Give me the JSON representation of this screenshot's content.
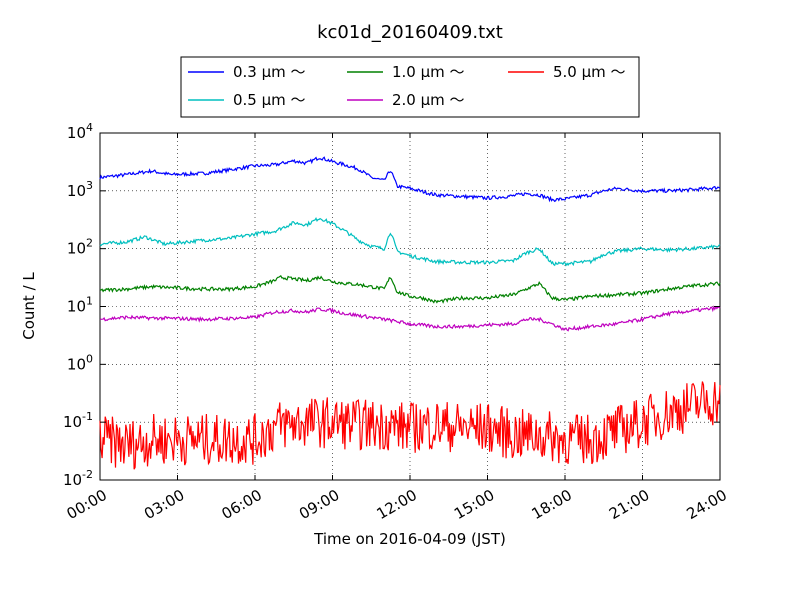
{
  "chart_data": {
    "type": "line",
    "title": "kc01d_20160409.txt",
    "xlabel": "Time on 2016-04-09 (JST)",
    "ylabel": "Count / L",
    "yscale": "log",
    "ylim": [
      0.01,
      10000
    ],
    "xlim": [
      "00:00",
      "24:00"
    ],
    "grid": true,
    "legend_position": "top-center",
    "x_ticks": [
      "00:00",
      "03:00",
      "06:00",
      "09:00",
      "12:00",
      "15:00",
      "18:00",
      "21:00",
      "24:00"
    ],
    "y_ticks": [
      {
        "base": "10",
        "exp": "-2"
      },
      {
        "base": "10",
        "exp": "-1"
      },
      {
        "base": "10",
        "exp": "0"
      },
      {
        "base": "10",
        "exp": "1"
      },
      {
        "base": "10",
        "exp": "2"
      },
      {
        "base": "10",
        "exp": "3"
      },
      {
        "base": "10",
        "exp": "4"
      }
    ],
    "series": [
      {
        "name": "0.3 μm ～",
        "color": "#0000ff",
        "x": [
          "00:00",
          "01:00",
          "02:00",
          "02:45",
          "04:00",
          "05:00",
          "06:00",
          "06:45",
          "07:30",
          "08:00",
          "08:30",
          "09:00",
          "09:30",
          "10:00",
          "10:30",
          "11:00",
          "11:15",
          "11:30",
          "12:00",
          "13:00",
          "14:00",
          "15:00",
          "16:00",
          "16:30",
          "17:00",
          "17:30",
          "18:00",
          "19:00",
          "19:30",
          "20:00",
          "21:00",
          "22:00",
          "23:00",
          "24:00"
        ],
        "y": [
          1700,
          1900,
          2200,
          1900,
          2000,
          2300,
          2700,
          2800,
          3300,
          3000,
          3800,
          3200,
          2800,
          2400,
          1700,
          1500,
          2300,
          1200,
          1100,
          850,
          800,
          750,
          820,
          900,
          850,
          700,
          720,
          850,
          1000,
          1100,
          1000,
          1000,
          1050,
          1150
        ]
      },
      {
        "name": "0.5 μm ～",
        "color": "#00bfbf",
        "x": [
          "00:00",
          "01:00",
          "01:45",
          "02:30",
          "04:00",
          "05:00",
          "06:00",
          "06:45",
          "07:30",
          "08:00",
          "08:30",
          "09:00",
          "09:30",
          "10:00",
          "10:30",
          "11:00",
          "11:15",
          "11:30",
          "12:00",
          "13:00",
          "14:00",
          "15:00",
          "16:00",
          "16:30",
          "17:00",
          "17:30",
          "18:00",
          "19:00",
          "19:30",
          "20:00",
          "21:00",
          "22:00",
          "23:00",
          "24:00"
        ],
        "y": [
          120,
          130,
          160,
          120,
          140,
          150,
          180,
          200,
          280,
          260,
          340,
          270,
          200,
          140,
          110,
          100,
          200,
          90,
          75,
          60,
          58,
          58,
          62,
          85,
          100,
          55,
          55,
          60,
          80,
          90,
          100,
          95,
          100,
          110
        ]
      },
      {
        "name": "1.0 μm ～",
        "color": "#008000",
        "x": [
          "00:00",
          "01:00",
          "02:00",
          "04:00",
          "05:00",
          "06:00",
          "06:45",
          "07:00",
          "07:30",
          "08:00",
          "08:30",
          "09:00",
          "09:30",
          "10:00",
          "10:30",
          "11:00",
          "11:15",
          "11:30",
          "12:00",
          "12:30",
          "13:00",
          "14:00",
          "15:00",
          "15:30",
          "16:00",
          "16:30",
          "17:00",
          "17:30",
          "18:00",
          "19:00",
          "20:00",
          "21:00",
          "22:00",
          "23:00",
          "24:00"
        ],
        "y": [
          19,
          20,
          22,
          20,
          20,
          22,
          28,
          32,
          30,
          28,
          32,
          27,
          25,
          24,
          22,
          20,
          33,
          18,
          15,
          14,
          12,
          14,
          14,
          15,
          16,
          20,
          25,
          14,
          13,
          15,
          16,
          17,
          20,
          23,
          25
        ]
      },
      {
        "name": "2.0 μm ～",
        "color": "#bf00bf",
        "x": [
          "00:00",
          "01:00",
          "02:00",
          "03:00",
          "04:00",
          "05:00",
          "06:00",
          "06:45",
          "07:30",
          "08:00",
          "08:30",
          "09:00",
          "09:30",
          "10:00",
          "10:30",
          "11:00",
          "11:30",
          "12:00",
          "13:00",
          "14:00",
          "15:00",
          "16:00",
          "16:30",
          "17:00",
          "17:30",
          "18:00",
          "19:00",
          "20:00",
          "21:00",
          "22:00",
          "23:00",
          "24:00"
        ],
        "y": [
          6,
          6.5,
          6.3,
          6.2,
          6.0,
          6.2,
          6.5,
          8,
          8.5,
          8,
          9,
          8.5,
          7.5,
          7,
          6.5,
          6,
          5.5,
          5,
          4.5,
          4.5,
          4.8,
          5,
          6,
          6,
          5,
          4,
          4.5,
          5,
          6,
          7.5,
          8.5,
          9.5
        ]
      },
      {
        "name": "5.0 μm ～",
        "color": "#ff0000",
        "x": [
          "00:00",
          "01:00",
          "02:00",
          "03:00",
          "04:00",
          "05:00",
          "06:00",
          "06:30",
          "07:00",
          "08:00",
          "09:00",
          "10:00",
          "11:00",
          "12:00",
          "13:00",
          "14:00",
          "15:00",
          "16:00",
          "17:00",
          "18:00",
          "19:00",
          "20:00",
          "21:00",
          "22:00",
          "23:00",
          "24:00"
        ],
        "y": [
          0.05,
          0.04,
          0.05,
          0.05,
          0.05,
          0.05,
          0.05,
          0.07,
          0.09,
          0.1,
          0.1,
          0.09,
          0.09,
          0.08,
          0.09,
          0.08,
          0.08,
          0.06,
          0.06,
          0.05,
          0.05,
          0.07,
          0.1,
          0.15,
          0.2,
          0.25
        ]
      }
    ]
  }
}
